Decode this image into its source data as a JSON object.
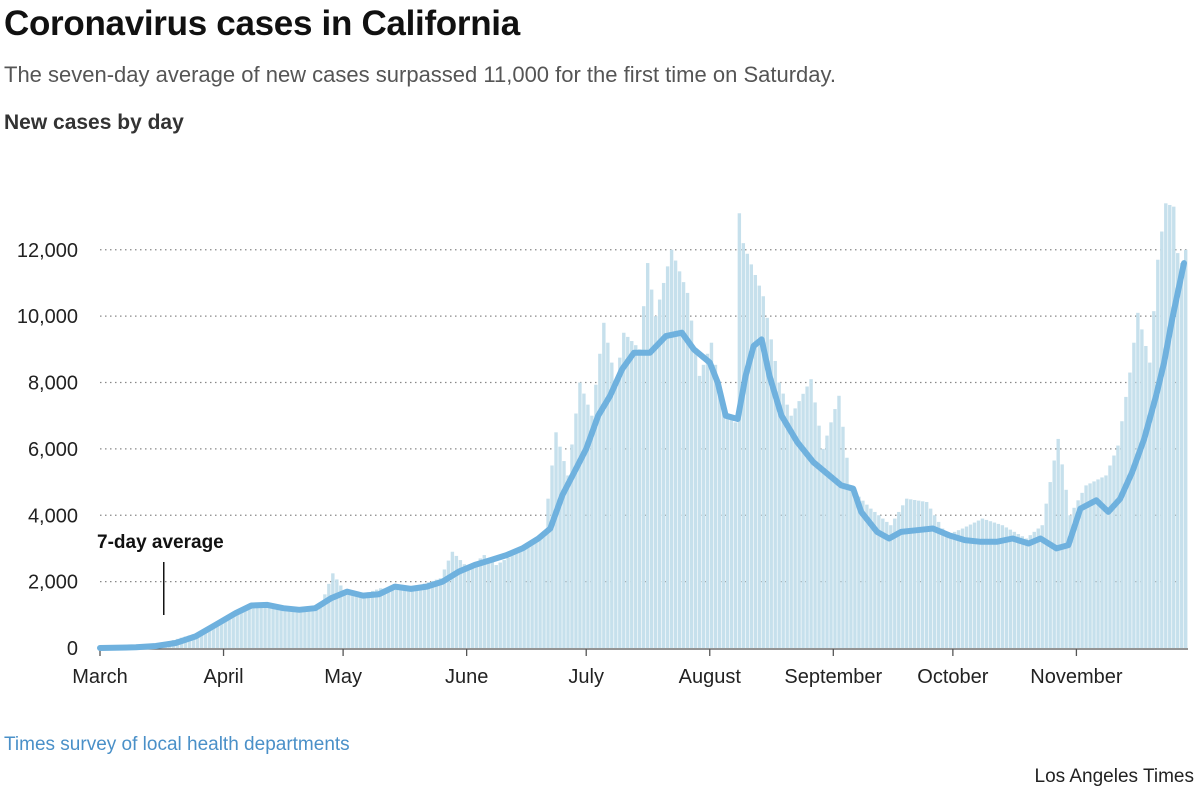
{
  "page": {
    "title": "Coronavirus cases in California",
    "subtitle": "The seven-day average of new cases surpassed 11,000 for the first time on Saturday.",
    "series_label": "New cases by day",
    "source": "Times survey of local health departments",
    "credit": "Los Angeles Times"
  },
  "colors": {
    "bars": "#c6e0ec",
    "line": "#6fb1de",
    "grid": "#888888",
    "axis": "#555555"
  },
  "chart_data": {
    "type": "bar",
    "title": "Coronavirus cases in California",
    "subtitle": "The seven-day average of new cases surpassed 11,000 for the first time on Saturday.",
    "ylabel": "New cases by day",
    "ylim": [
      0,
      13500
    ],
    "yticks": [
      0,
      2000,
      4000,
      6000,
      8000,
      10000,
      12000
    ],
    "ytick_labels": [
      "0",
      "2,000",
      "4,000",
      "6,000",
      "8,000",
      "10,000",
      "12,000"
    ],
    "xlim": [
      "2020-03-01",
      "2020-11-29"
    ],
    "xticks": [
      {
        "date": "2020-03-01",
        "label": "March"
      },
      {
        "date": "2020-04-01",
        "label": "April"
      },
      {
        "date": "2020-05-01",
        "label": "May"
      },
      {
        "date": "2020-06-01",
        "label": "June"
      },
      {
        "date": "2020-07-01",
        "label": "July"
      },
      {
        "date": "2020-08-01",
        "label": "August"
      },
      {
        "date": "2020-09-01",
        "label": "September"
      },
      {
        "date": "2020-10-01",
        "label": "October"
      },
      {
        "date": "2020-11-01",
        "label": "November"
      }
    ],
    "grid": "horizontal dotted",
    "annotations": [
      {
        "text": "7-day average",
        "date": "2020-03-17"
      }
    ],
    "series": [
      {
        "type": "bar",
        "daily": [
          [
            "2020-03-01",
            0
          ],
          [
            "2020-03-15",
            100
          ],
          [
            "2020-03-25",
            450
          ],
          [
            "2020-04-01",
            800
          ],
          [
            "2020-04-05",
            1200
          ],
          [
            "2020-04-10",
            1300
          ],
          [
            "2020-04-15",
            1250
          ],
          [
            "2020-04-20",
            1100
          ],
          [
            "2020-04-25",
            1300
          ],
          [
            "2020-04-28",
            2250
          ],
          [
            "2020-05-01",
            1700
          ],
          [
            "2020-05-05",
            1600
          ],
          [
            "2020-05-10",
            1800
          ],
          [
            "2020-05-15",
            1750
          ],
          [
            "2020-05-20",
            1900
          ],
          [
            "2020-05-25",
            2100
          ],
          [
            "2020-05-28",
            2900
          ],
          [
            "2020-06-01",
            2400
          ],
          [
            "2020-06-05",
            2800
          ],
          [
            "2020-06-08",
            2500
          ],
          [
            "2020-06-12",
            2800
          ],
          [
            "2020-06-16",
            3100
          ],
          [
            "2020-06-20",
            3500
          ],
          [
            "2020-06-23",
            6500
          ],
          [
            "2020-06-26",
            5200
          ],
          [
            "2020-06-29",
            8000
          ],
          [
            "2020-07-02",
            7000
          ],
          [
            "2020-07-05",
            9800
          ],
          [
            "2020-07-08",
            8000
          ],
          [
            "2020-07-10",
            9500
          ],
          [
            "2020-07-14",
            9000
          ],
          [
            "2020-07-16",
            11600
          ],
          [
            "2020-07-18",
            10000
          ],
          [
            "2020-07-22",
            12000
          ],
          [
            "2020-07-26",
            10700
          ],
          [
            "2020-07-29",
            8200
          ],
          [
            "2020-08-01",
            9200
          ],
          [
            "2020-08-04",
            7200
          ],
          [
            "2020-08-07",
            6800
          ],
          [
            "2020-08-08",
            13100
          ],
          [
            "2020-08-09",
            12200
          ],
          [
            "2020-08-14",
            10600
          ],
          [
            "2020-08-18",
            8000
          ],
          [
            "2020-08-21",
            7000
          ],
          [
            "2020-08-26",
            8100
          ],
          [
            "2020-08-29",
            6000
          ],
          [
            "2020-09-02",
            7600
          ],
          [
            "2020-09-05",
            4800
          ],
          [
            "2020-09-10",
            4200
          ],
          [
            "2020-09-15",
            3700
          ],
          [
            "2020-09-19",
            4500
          ],
          [
            "2020-09-24",
            4400
          ],
          [
            "2020-09-29",
            3400
          ],
          [
            "2020-10-03",
            3600
          ],
          [
            "2020-10-08",
            3900
          ],
          [
            "2020-10-13",
            3700
          ],
          [
            "2020-10-19",
            3300
          ],
          [
            "2020-10-23",
            3700
          ],
          [
            "2020-10-27",
            6300
          ],
          [
            "2020-10-30",
            4000
          ],
          [
            "2020-11-03",
            4900
          ],
          [
            "2020-11-08",
            5200
          ],
          [
            "2020-11-11",
            6100
          ],
          [
            "2020-11-14",
            8300
          ],
          [
            "2020-11-16",
            10100
          ],
          [
            "2020-11-19",
            8600
          ],
          [
            "2020-11-21",
            11700
          ],
          [
            "2020-11-23",
            13400
          ],
          [
            "2020-11-25",
            13300
          ],
          [
            "2020-11-26",
            11900
          ],
          [
            "2020-11-27",
            11600
          ],
          [
            "2020-11-28",
            12000
          ]
        ]
      },
      {
        "type": "line",
        "points": [
          [
            "2020-03-01",
            0
          ],
          [
            "2020-03-10",
            20
          ],
          [
            "2020-03-15",
            60
          ],
          [
            "2020-03-20",
            150
          ],
          [
            "2020-03-25",
            350
          ],
          [
            "2020-03-30",
            700
          ],
          [
            "2020-04-04",
            1050
          ],
          [
            "2020-04-08",
            1280
          ],
          [
            "2020-04-12",
            1300
          ],
          [
            "2020-04-16",
            1200
          ],
          [
            "2020-04-20",
            1150
          ],
          [
            "2020-04-24",
            1200
          ],
          [
            "2020-04-28",
            1500
          ],
          [
            "2020-05-02",
            1700
          ],
          [
            "2020-05-06",
            1580
          ],
          [
            "2020-05-10",
            1620
          ],
          [
            "2020-05-14",
            1850
          ],
          [
            "2020-05-18",
            1780
          ],
          [
            "2020-05-22",
            1850
          ],
          [
            "2020-05-26",
            2000
          ],
          [
            "2020-05-30",
            2300
          ],
          [
            "2020-06-03",
            2500
          ],
          [
            "2020-06-07",
            2650
          ],
          [
            "2020-06-11",
            2800
          ],
          [
            "2020-06-15",
            3000
          ],
          [
            "2020-06-19",
            3300
          ],
          [
            "2020-06-22",
            3600
          ],
          [
            "2020-06-25",
            4600
          ],
          [
            "2020-06-28",
            5300
          ],
          [
            "2020-07-01",
            6000
          ],
          [
            "2020-07-04",
            7000
          ],
          [
            "2020-07-07",
            7600
          ],
          [
            "2020-07-10",
            8400
          ],
          [
            "2020-07-13",
            8900
          ],
          [
            "2020-07-17",
            8900
          ],
          [
            "2020-07-21",
            9400
          ],
          [
            "2020-07-25",
            9500
          ],
          [
            "2020-07-28",
            9000
          ],
          [
            "2020-08-01",
            8600
          ],
          [
            "2020-08-03",
            8000
          ],
          [
            "2020-08-05",
            7000
          ],
          [
            "2020-08-08",
            6900
          ],
          [
            "2020-08-10",
            8200
          ],
          [
            "2020-08-12",
            9100
          ],
          [
            "2020-08-14",
            9300
          ],
          [
            "2020-08-16",
            8200
          ],
          [
            "2020-08-19",
            7000
          ],
          [
            "2020-08-23",
            6200
          ],
          [
            "2020-08-27",
            5600
          ],
          [
            "2020-08-31",
            5200
          ],
          [
            "2020-09-03",
            4900
          ],
          [
            "2020-09-06",
            4800
          ],
          [
            "2020-09-08",
            4100
          ],
          [
            "2020-09-12",
            3500
          ],
          [
            "2020-09-15",
            3300
          ],
          [
            "2020-09-18",
            3500
          ],
          [
            "2020-09-22",
            3550
          ],
          [
            "2020-09-26",
            3600
          ],
          [
            "2020-09-30",
            3400
          ],
          [
            "2020-10-04",
            3250
          ],
          [
            "2020-10-08",
            3200
          ],
          [
            "2020-10-12",
            3200
          ],
          [
            "2020-10-16",
            3300
          ],
          [
            "2020-10-20",
            3150
          ],
          [
            "2020-10-23",
            3300
          ],
          [
            "2020-10-27",
            3000
          ],
          [
            "2020-10-30",
            3100
          ],
          [
            "2020-11-02",
            4200
          ],
          [
            "2020-11-06",
            4450
          ],
          [
            "2020-11-09",
            4100
          ],
          [
            "2020-11-12",
            4500
          ],
          [
            "2020-11-15",
            5300
          ],
          [
            "2020-11-18",
            6300
          ],
          [
            "2020-11-21",
            7600
          ],
          [
            "2020-11-23",
            8600
          ],
          [
            "2020-11-25",
            9900
          ],
          [
            "2020-11-28",
            11600
          ]
        ]
      }
    ]
  }
}
